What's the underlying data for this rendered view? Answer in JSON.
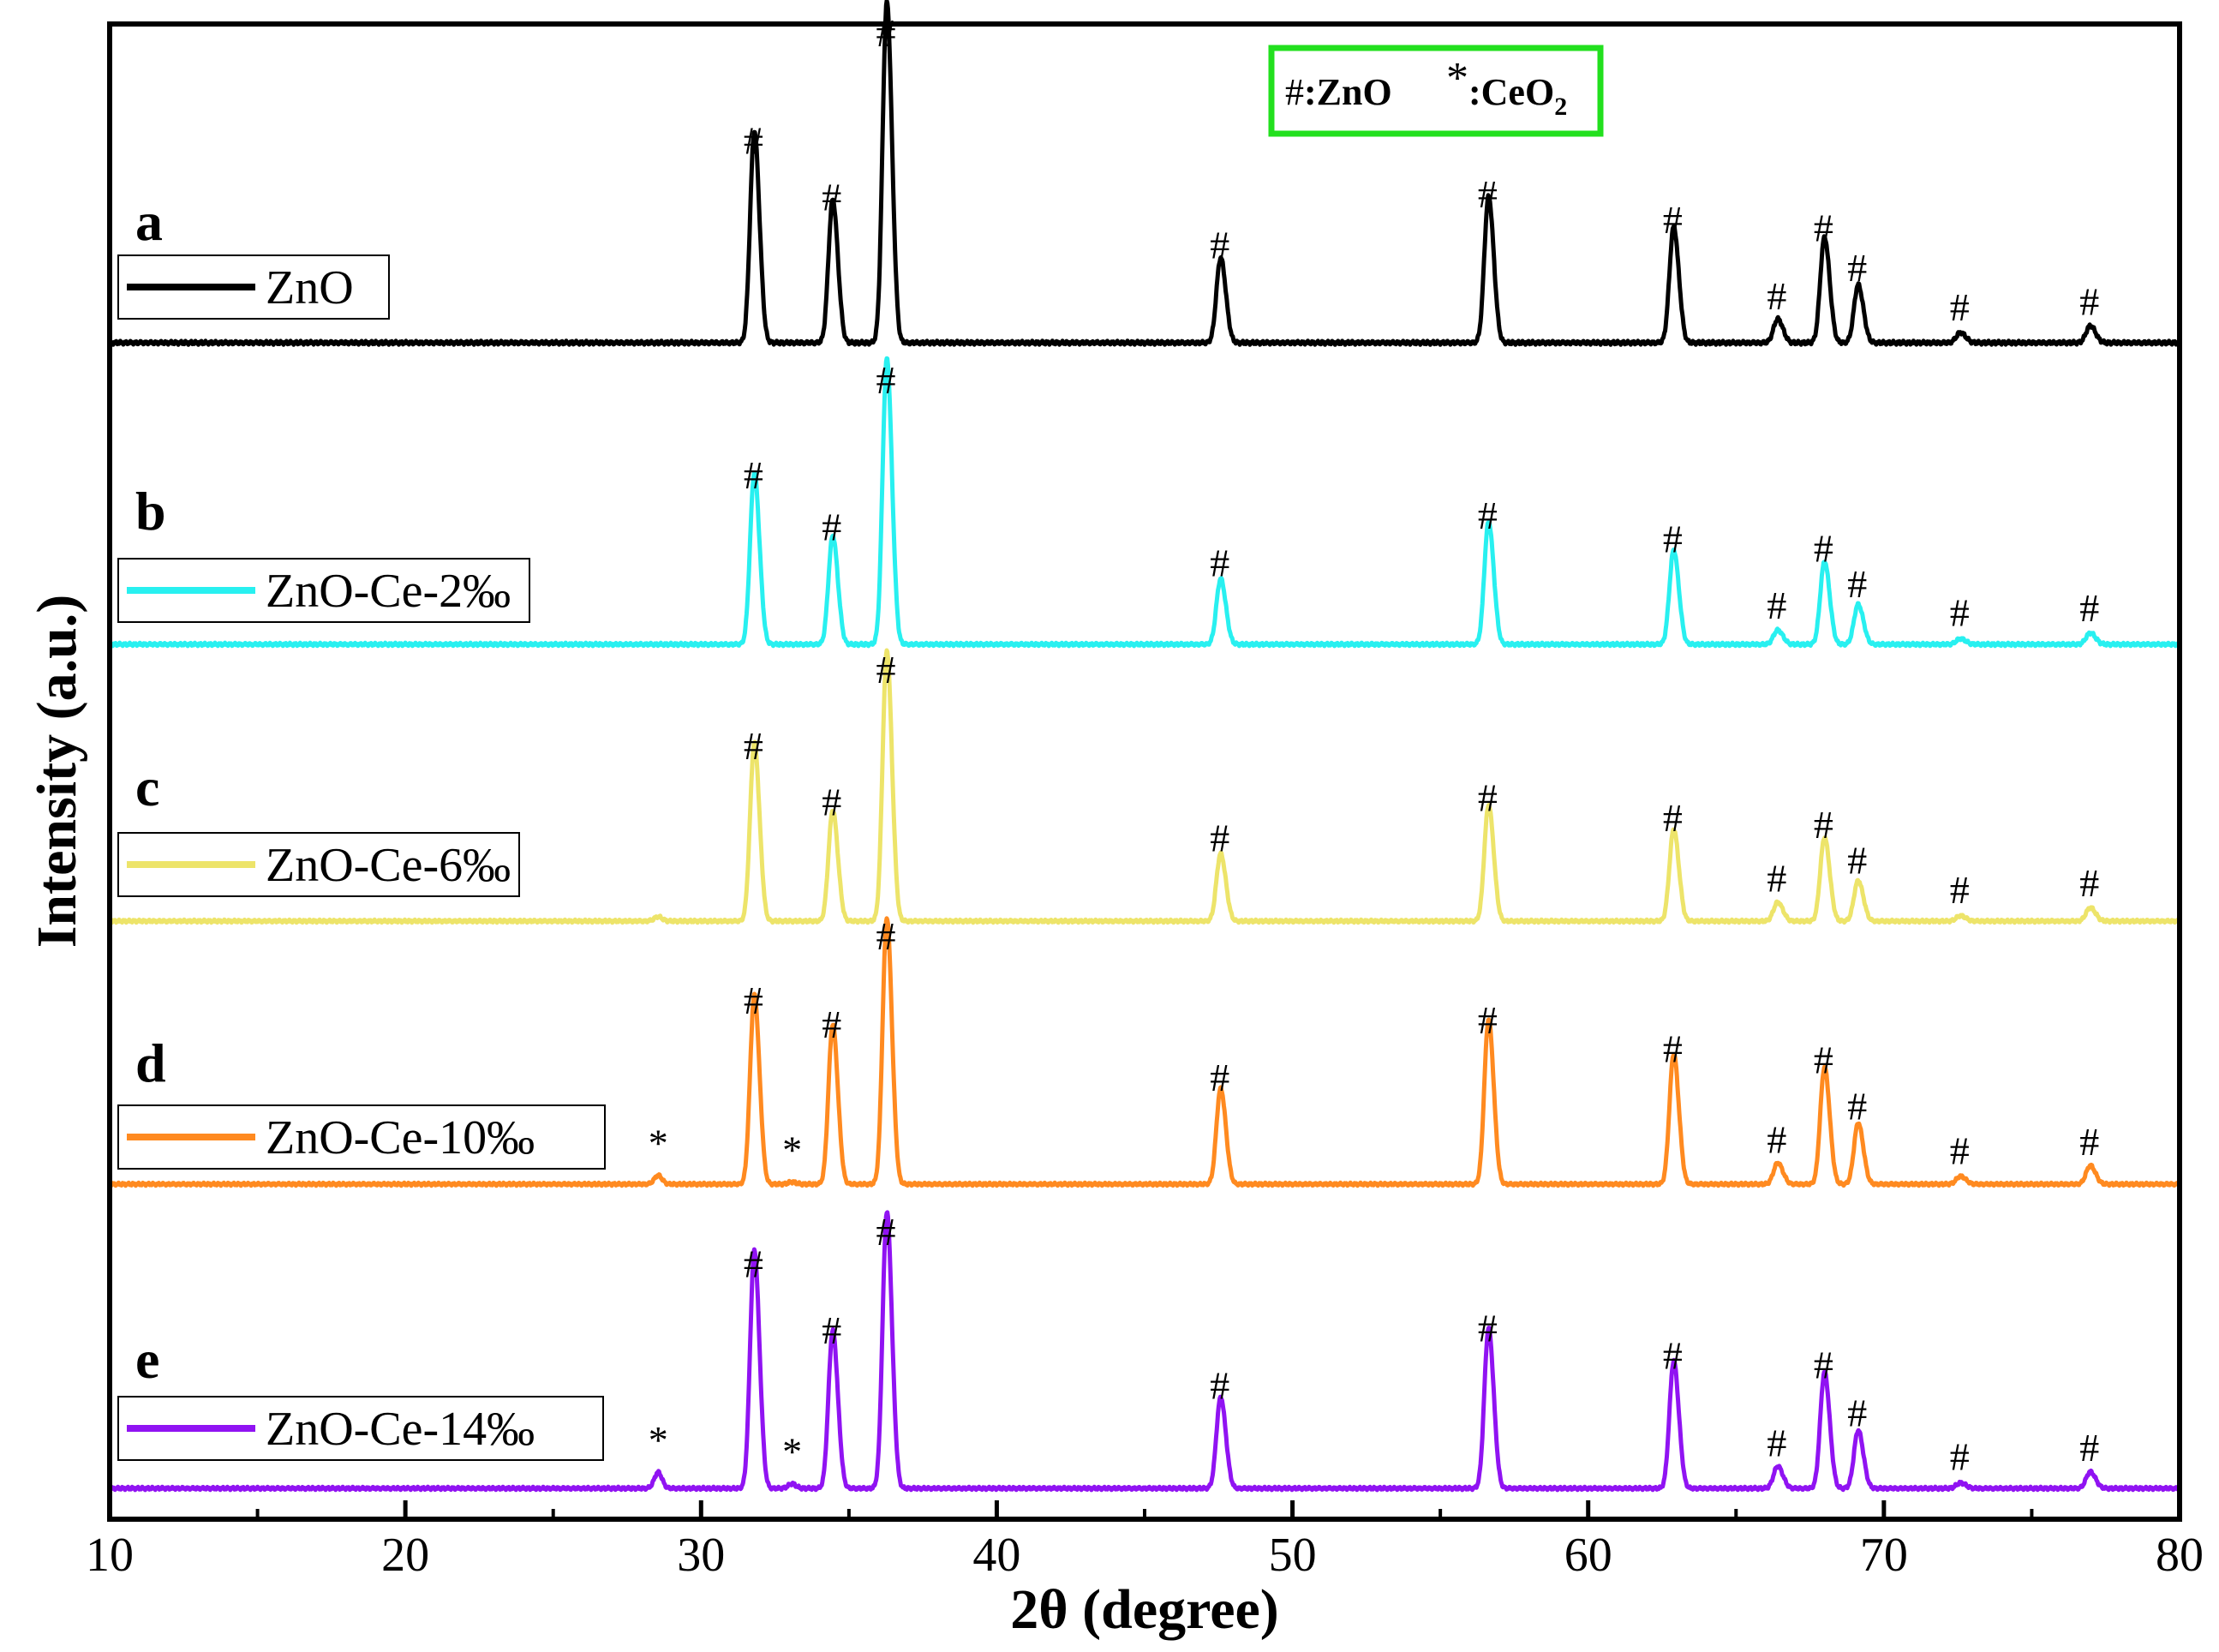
{
  "chart_data": {
    "type": "line",
    "title": "",
    "xlabel": "2θ (degree)",
    "ylabel": "Intensity (a.u.)",
    "xlim": [
      10,
      80
    ],
    "x_ticks": [
      10,
      20,
      30,
      40,
      50,
      60,
      70,
      80
    ],
    "grid": false,
    "key_box": {
      "zno_symbol": "#",
      "zno_label": ":ZnO",
      "ceo2_symbol": "*",
      "ceo2_label": ":CeO",
      "ceo2_subscript": "2",
      "border_color": "#22e01e"
    },
    "peak_positions": [
      31.77,
      34.42,
      36.25,
      47.54,
      56.6,
      62.86,
      66.38,
      67.96,
      69.1,
      72.56,
      76.95
    ],
    "ceo2_positions": [
      28.55,
      33.08
    ],
    "series": [
      {
        "letter": "a",
        "name": "ZnO",
        "color": "#000000",
        "peak_heights": [
          0.62,
          0.42,
          1.0,
          0.25,
          0.43,
          0.34,
          0.07,
          0.31,
          0.17,
          0.03,
          0.05
        ],
        "zno_markers": [
          "#",
          "#",
          "#",
          "#",
          "#",
          "#",
          "#",
          "#",
          "#",
          "#",
          "#"
        ],
        "ceo2_heights": [
          0.0,
          0.0
        ],
        "ceo2_markers": []
      },
      {
        "letter": "b",
        "name": "ZnO-Ce-2‰",
        "color": "#28f0f0",
        "peak_heights": [
          0.6,
          0.38,
          1.0,
          0.23,
          0.43,
          0.33,
          0.05,
          0.29,
          0.14,
          0.02,
          0.04
        ],
        "zno_markers": [
          "#",
          "#",
          "#",
          "#",
          "#",
          "#",
          "#",
          "#",
          "#",
          "#",
          "#"
        ],
        "ceo2_heights": [
          0.0,
          0.0
        ],
        "ceo2_markers": []
      },
      {
        "letter": "c",
        "name": "ZnO-Ce-6‰",
        "color": "#ede46a",
        "peak_heights": [
          0.66,
          0.41,
          1.0,
          0.25,
          0.43,
          0.34,
          0.07,
          0.31,
          0.15,
          0.02,
          0.05
        ],
        "zno_markers": [
          "#",
          "#",
          "#",
          "#",
          "#",
          "#",
          "#",
          "#",
          "#",
          "#",
          "#"
        ],
        "ceo2_heights": [
          0.02,
          0.0
        ],
        "ceo2_markers": []
      },
      {
        "letter": "d",
        "name": "ZnO-Ce-10‰",
        "color": "#ff8a20",
        "peak_heights": [
          0.71,
          0.6,
          1.0,
          0.36,
          0.62,
          0.49,
          0.08,
          0.44,
          0.23,
          0.03,
          0.07
        ],
        "zno_markers": [
          "#",
          "#",
          "#",
          "#",
          "#",
          "#",
          "#",
          "#",
          "#",
          "#",
          "#"
        ],
        "ceo2_heights": [
          0.04,
          0.01
        ],
        "ceo2_markers": [
          "*",
          "*"
        ]
      },
      {
        "letter": "e",
        "name": "ZnO-Ce-14‰",
        "color": "#9013f2",
        "peak_heights": [
          0.86,
          0.57,
          1.0,
          0.33,
          0.58,
          0.46,
          0.08,
          0.42,
          0.21,
          0.02,
          0.06
        ],
        "zno_markers": [
          "#",
          "#",
          "#",
          "#",
          "#",
          "#",
          "#",
          "#",
          "#",
          "#",
          "#"
        ],
        "ceo2_heights": [
          0.07,
          0.02
        ],
        "ceo2_markers": [
          "*",
          "*"
        ]
      }
    ]
  }
}
